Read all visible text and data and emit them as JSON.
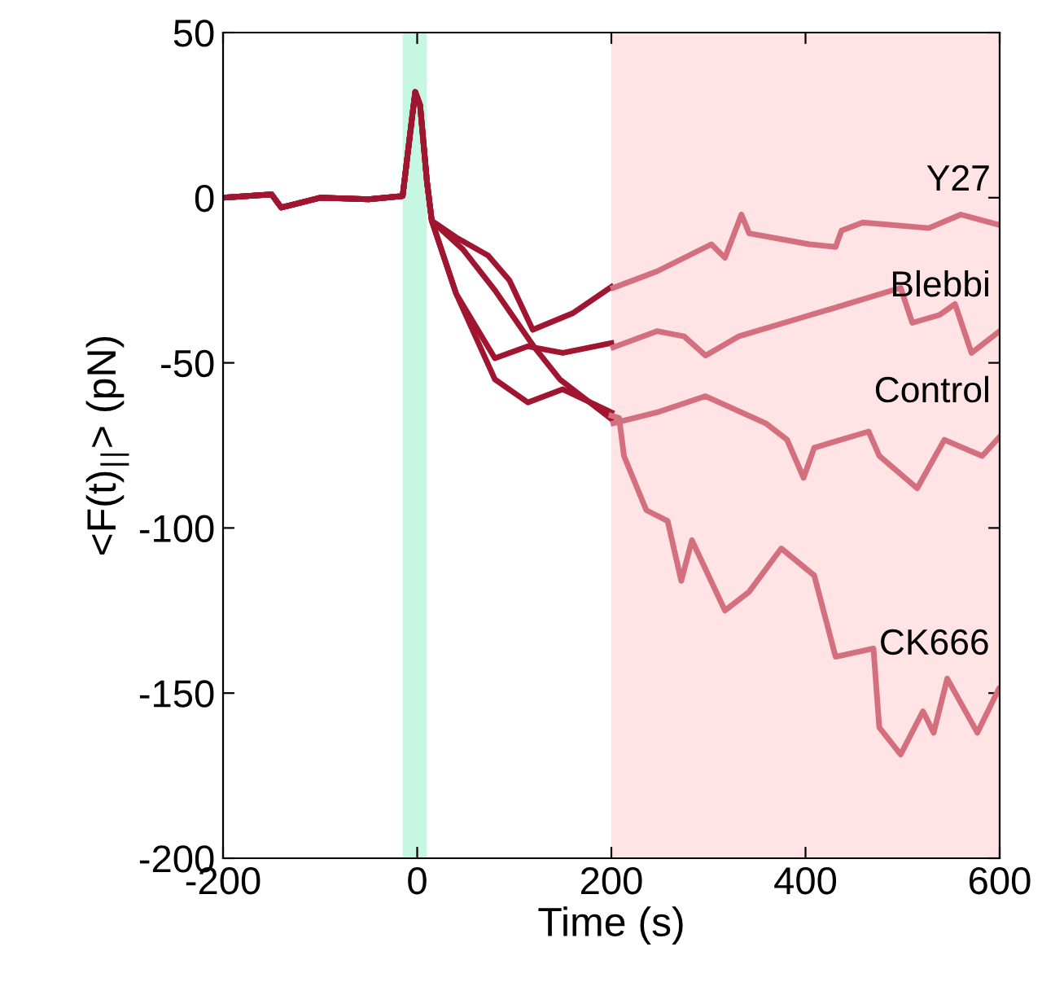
{
  "chart_data": {
    "type": "line",
    "xlabel": "Time (s)",
    "ylabel": "<F(t)$_{||}$> (pN)",
    "xlim": [
      -200,
      600
    ],
    "ylim": [
      -200,
      50
    ],
    "xticks": [
      -200,
      0,
      200,
      400,
      600
    ],
    "yticks": [
      -200,
      -150,
      -100,
      -50,
      0,
      50
    ],
    "grid": false,
    "marker": "none",
    "line_style": "solid",
    "bands": [
      {
        "axis": "x",
        "from": -15,
        "to": 10,
        "color": "#c6f7e2"
      },
      {
        "axis": "x",
        "from": 200,
        "to": 600,
        "color": "#ffe3e5"
      }
    ],
    "series": [
      {
        "color": "#a01530",
        "x": [
          -200,
          -150,
          -140,
          -100,
          -50,
          -15,
          -5,
          -2,
          3,
          10,
          15,
          40,
          73,
          95,
          119,
          160,
          200
        ],
        "values": [
          0,
          1,
          -3,
          0,
          -0.5,
          0.5,
          25,
          32,
          28,
          5,
          -7,
          -12,
          -17.5,
          -25,
          -40,
          -35,
          -27
        ]
      },
      {
        "color": "#a01530",
        "x": [
          -200,
          -150,
          -140,
          -100,
          -50,
          -15,
          -5,
          -2,
          3,
          10,
          15,
          40,
          80,
          114,
          150,
          200
        ],
        "values": [
          0,
          1,
          -3,
          0,
          -0.5,
          0.5,
          25,
          32,
          28,
          5,
          -7,
          -29,
          -48.6,
          -45,
          -47,
          -44
        ]
      },
      {
        "color": "#a01530",
        "x": [
          -200,
          -150,
          -140,
          -100,
          -50,
          -15,
          -5,
          -2,
          3,
          10,
          15,
          47,
          80,
          120,
          147,
          200
        ],
        "values": [
          0,
          1,
          -3,
          0,
          -0.5,
          0.5,
          25,
          32,
          28,
          5,
          -7,
          -15.6,
          -28,
          -45,
          -55,
          -67
        ]
      },
      {
        "color": "#a01530",
        "x": [
          -200,
          -150,
          -140,
          -100,
          -50,
          -15,
          -5,
          -2,
          3,
          10,
          15,
          40,
          80,
          114,
          150,
          200
        ],
        "values": [
          0,
          1,
          -3,
          0,
          -0.5,
          0.5,
          25,
          32,
          28,
          5,
          -7,
          -29,
          -55,
          -62,
          -58,
          -65
        ]
      },
      {
        "name": "Y27",
        "color": "#d4707e",
        "x": [
          202,
          247,
          303,
          317,
          334,
          342,
          404,
          431,
          437,
          459,
          527,
          560,
          600
        ],
        "values": [
          -27.3,
          -22.3,
          -14.1,
          -18.2,
          -5.1,
          -10.8,
          -14.1,
          -14.9,
          -10,
          -7.5,
          -9.2,
          -5.1,
          -8.3
        ]
      },
      {
        "name": "Blebbi",
        "color": "#d4707e",
        "x": [
          202,
          247,
          275,
          297,
          331,
          387,
          443,
          498,
          510,
          538,
          554,
          571,
          600
        ],
        "values": [
          -45.3,
          -40.4,
          -42,
          -47.8,
          -42,
          -37.1,
          -32.2,
          -27.3,
          -37.9,
          -35.5,
          -32.2,
          -47,
          -40.4
        ]
      },
      {
        "name": "Control",
        "color": "#d4707e",
        "x": [
          202,
          247,
          297,
          359,
          381,
          398,
          409,
          465,
          476,
          515,
          543,
          582,
          600
        ],
        "values": [
          -68.3,
          -65,
          -60.1,
          -68.3,
          -73.3,
          -84.8,
          -75.7,
          -70.8,
          -78.2,
          -88,
          -73.3,
          -78.2,
          -72.4
        ]
      },
      {
        "name": "CK666",
        "color": "#d4707e",
        "x": [
          200,
          208,
          213,
          236,
          258,
          272,
          283,
          317,
          342,
          375,
          409,
          431,
          470,
          476,
          498,
          521,
          532,
          546,
          577,
          599
        ],
        "values": [
          -66,
          -66.7,
          -78.2,
          -94.6,
          -97.9,
          -116,
          -103.7,
          -125,
          -119.3,
          -106.2,
          -114.4,
          -139,
          -136.5,
          -160.4,
          -168.6,
          -155.5,
          -162,
          -145.6,
          -162,
          -148.8
        ]
      }
    ]
  }
}
